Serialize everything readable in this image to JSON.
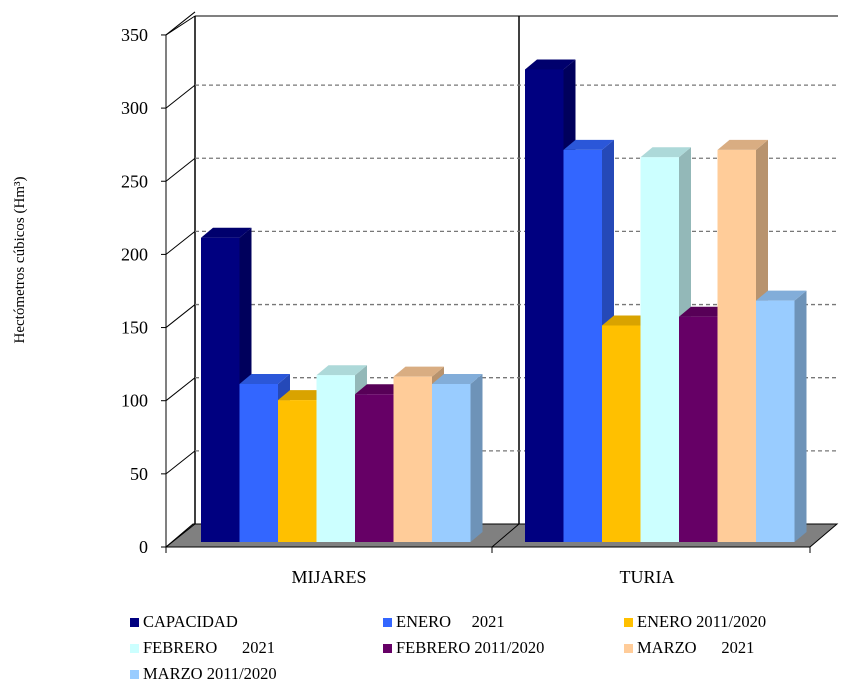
{
  "chart_data": {
    "type": "bar",
    "style": "3d-clustered-column",
    "categories": [
      "MIJARES",
      "TURIA"
    ],
    "ylabel": "Hectómetros cúbicos (Hm³)",
    "ylim": [
      0,
      350
    ],
    "yticks": [
      "0",
      "50",
      "100",
      "150",
      "200",
      "250",
      "300",
      "350"
    ],
    "grid": true,
    "legend_position": "bottom",
    "series": [
      {
        "name": "CAPACIDAD",
        "values": [
          208,
          323
        ],
        "color": "#000080"
      },
      {
        "name": "ENERO     2021",
        "values": [
          108,
          268
        ],
        "color": "#3366FF"
      },
      {
        "name": "ENERO 2011/2020",
        "values": [
          97,
          148
        ],
        "color": "#FFC000"
      },
      {
        "name": "FEBRERO      2021",
        "values": [
          114,
          263
        ],
        "color": "#CCFFFF"
      },
      {
        "name": "FEBRERO 2011/2020",
        "values": [
          101,
          154
        ],
        "color": "#660066"
      },
      {
        "name": "MARZO      2021",
        "values": [
          113,
          268
        ],
        "color": "#FFCC99"
      },
      {
        "name": "MARZO 2011/2020",
        "values": [
          108,
          165
        ],
        "color": "#99CCFF"
      }
    ]
  }
}
